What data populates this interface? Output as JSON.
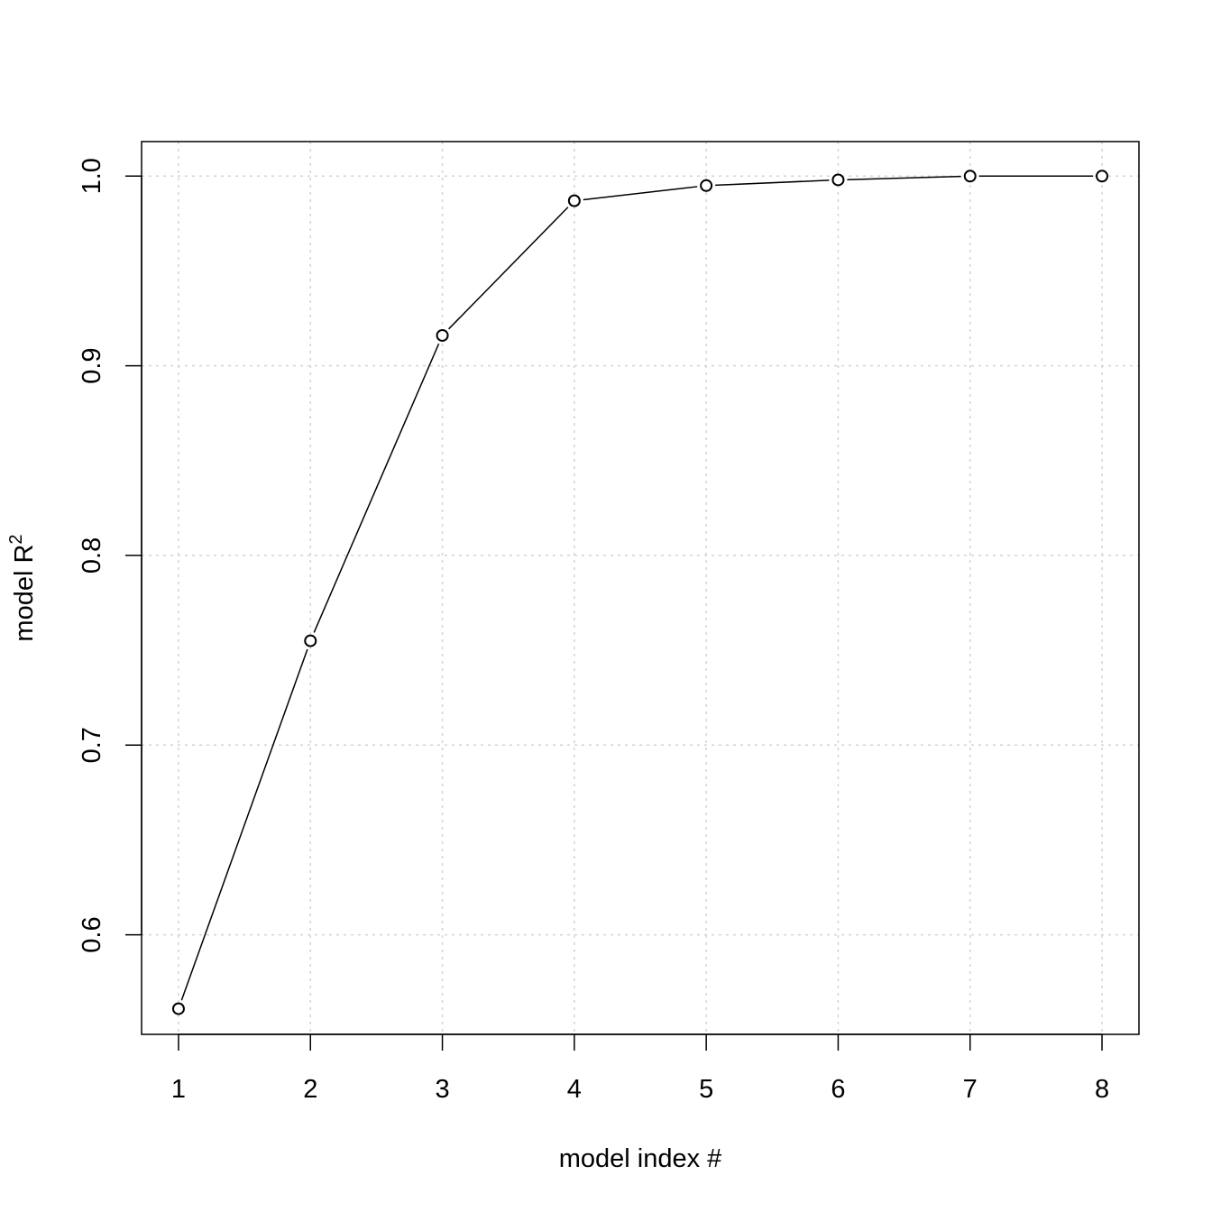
{
  "chart_data": {
    "type": "line",
    "title": "",
    "xlabel": "model index #",
    "ylabel": "model R",
    "ylabel_superscript": "2",
    "x": [
      1,
      2,
      3,
      4,
      5,
      6,
      7,
      8
    ],
    "series": [
      {
        "values": [
          0.561,
          0.755,
          0.916,
          0.987,
          0.995,
          0.998,
          1.0,
          1.0
        ]
      }
    ],
    "xlim": [
      0.72,
      8.28
    ],
    "ylim": [
      0.5475,
      1.0182
    ],
    "xticks": [
      1,
      2,
      3,
      4,
      5,
      6,
      7,
      8
    ],
    "yticks": [
      0.6,
      0.7,
      0.8,
      0.9,
      1.0
    ],
    "ytick_labels": [
      "0.6",
      "0.7",
      "0.8",
      "0.9",
      "1.0"
    ],
    "grid": true,
    "marker": "open-circle",
    "line_color": "#000000",
    "grid_color": "#d3d3d3"
  }
}
